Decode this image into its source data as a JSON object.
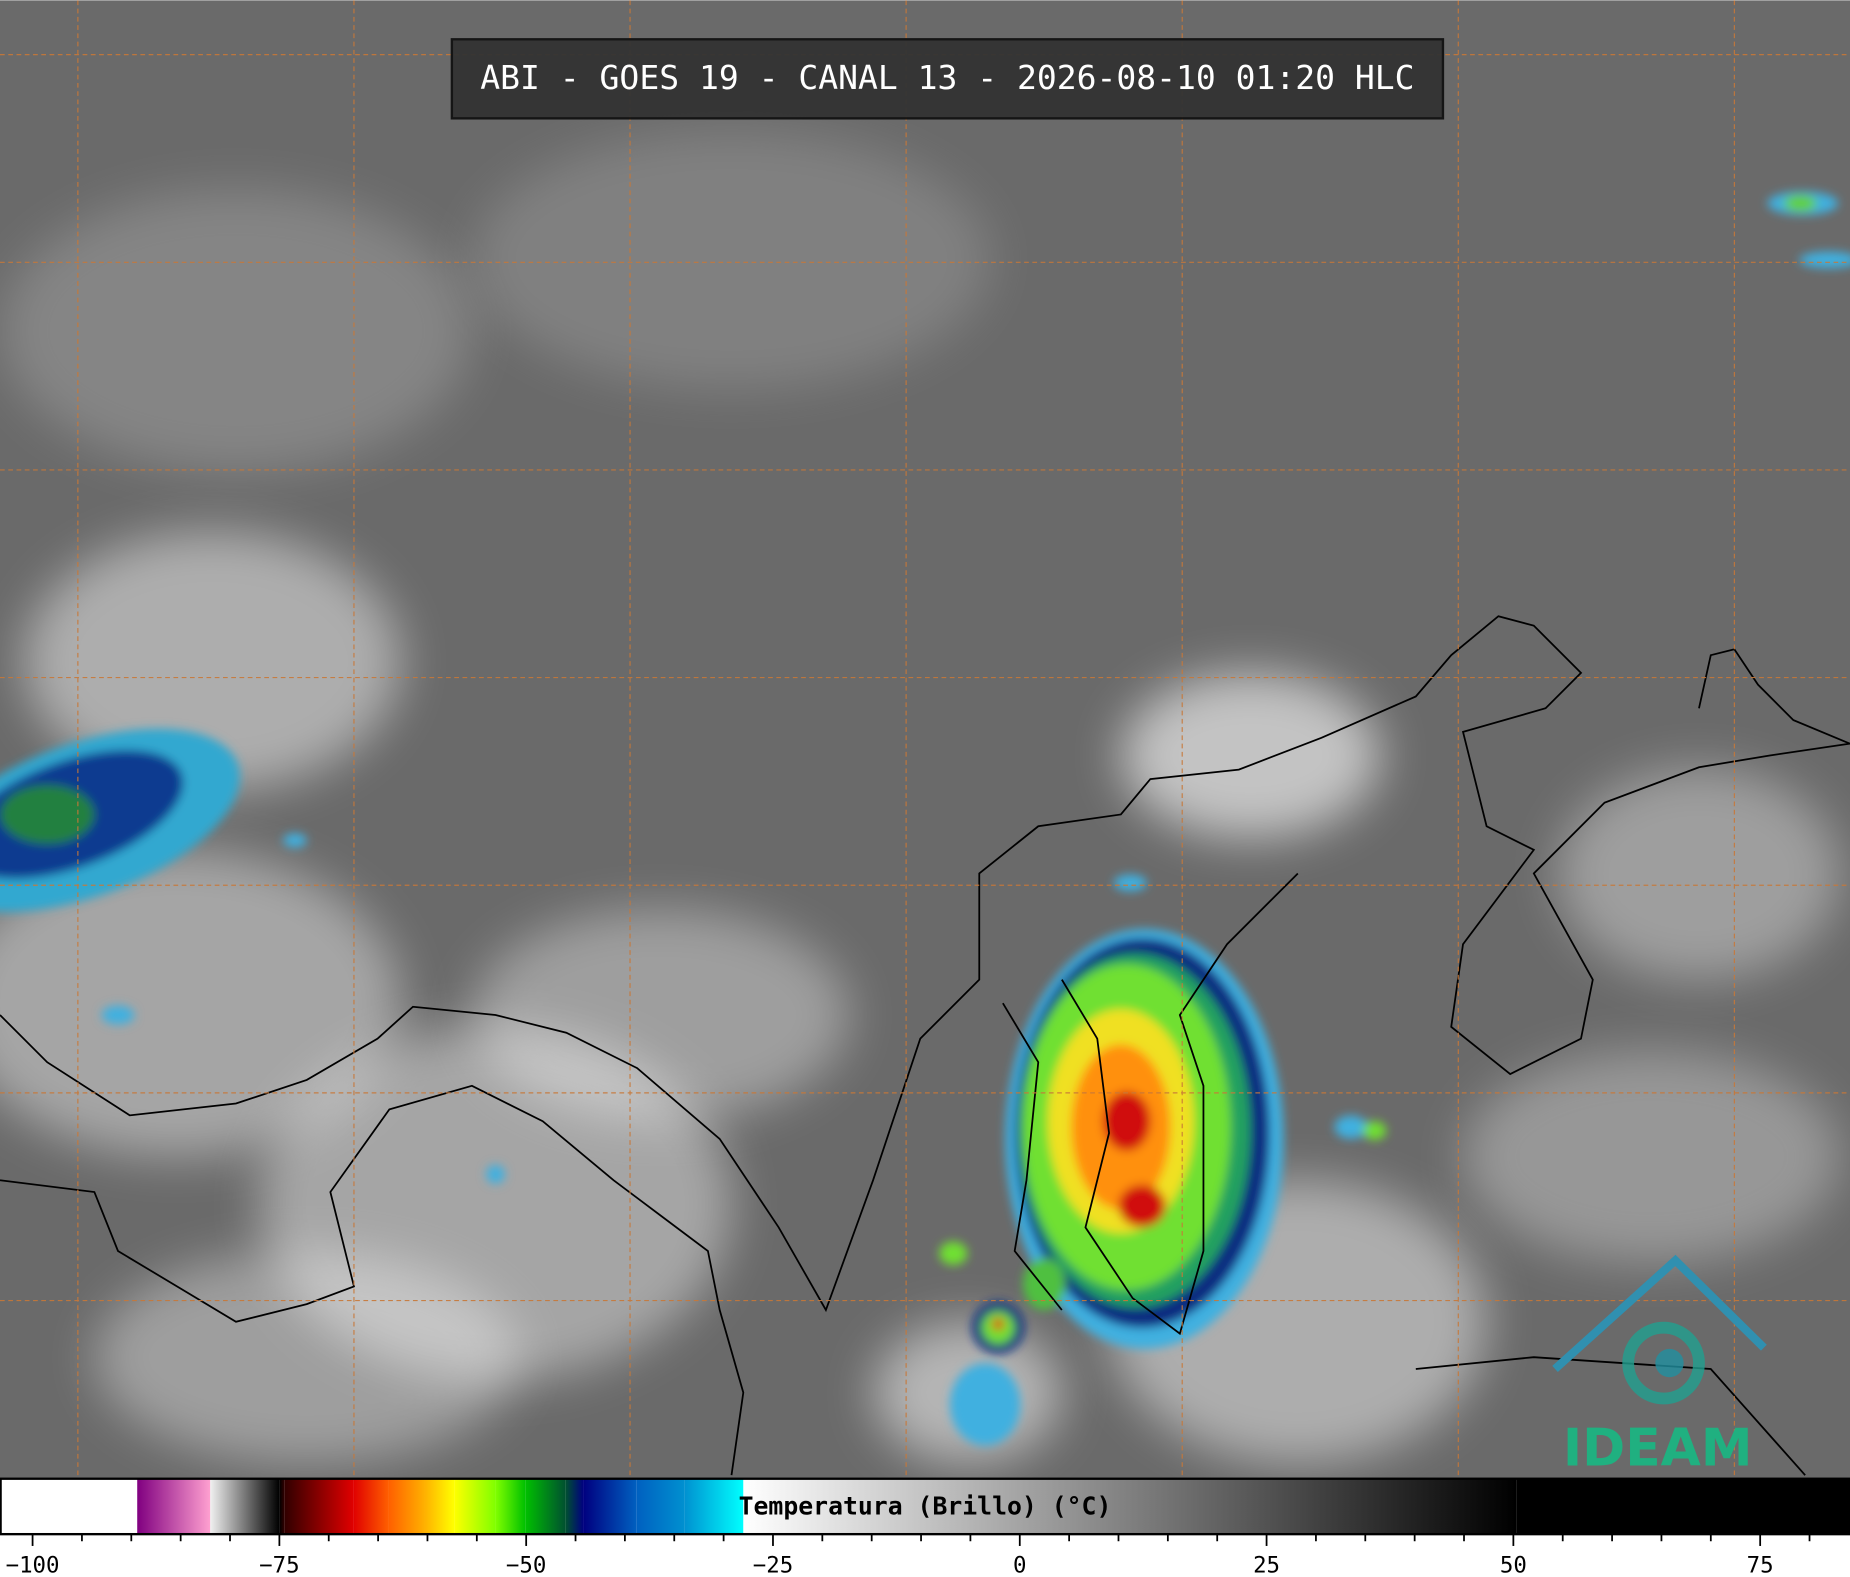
{
  "title": "ABI - GOES 19 - CANAL 13 - 2026-08-10 01:20 HLC",
  "logo": {
    "text": "IDEAM"
  },
  "chart_data": {
    "type": "colorbar",
    "xlabel": "Temperatura (Brillo) (°C)",
    "xlim": [
      -103.3,
      84.1
    ],
    "xticks": [
      {
        "value": -100,
        "label": "−100"
      },
      {
        "value": -75,
        "label": "−75"
      },
      {
        "value": -50,
        "label": "−50"
      },
      {
        "value": -25,
        "label": "−25"
      },
      0,
      25,
      50,
      75
    ],
    "xminorticks": [
      -95,
      -90,
      -85,
      -80,
      -70,
      -65,
      -60,
      -55,
      -45,
      -40,
      -35,
      -30,
      -20,
      -15,
      -10,
      -5,
      5,
      10,
      15,
      20,
      30,
      35,
      40,
      45,
      55,
      60,
      65,
      70,
      80
    ],
    "colormap": [
      {
        "value": -103.3,
        "color": "#ffffff"
      },
      {
        "value": -89.4,
        "color": "#ffffff"
      },
      {
        "value": -89.4,
        "color": "#800080"
      },
      {
        "value": -82,
        "color": "#ffa0d0"
      },
      {
        "value": -82,
        "color": "#f0f0f0"
      },
      {
        "value": -75,
        "color": "#000000"
      },
      {
        "value": -74.5,
        "color": "#300000"
      },
      {
        "value": -67.5,
        "color": "#e00000"
      },
      {
        "value": -63.9,
        "color": "#ff6000"
      },
      {
        "value": -60.3,
        "color": "#ffb000"
      },
      {
        "value": -57.3,
        "color": "#ffff00"
      },
      {
        "value": -53.1,
        "color": "#80ff00"
      },
      {
        "value": -50.1,
        "color": "#00c000"
      },
      {
        "value": -46,
        "color": "#005030"
      },
      {
        "value": -44.2,
        "color": "#000080"
      },
      {
        "value": -38.8,
        "color": "#0060c0"
      },
      {
        "value": -34,
        "color": "#0090d0"
      },
      {
        "value": -28,
        "color": "#00ffff"
      },
      {
        "value": -28,
        "color": "#ffffff"
      },
      {
        "value": 50.3,
        "color": "#000000"
      },
      {
        "value": 84.1,
        "color": "#000000"
      }
    ]
  }
}
